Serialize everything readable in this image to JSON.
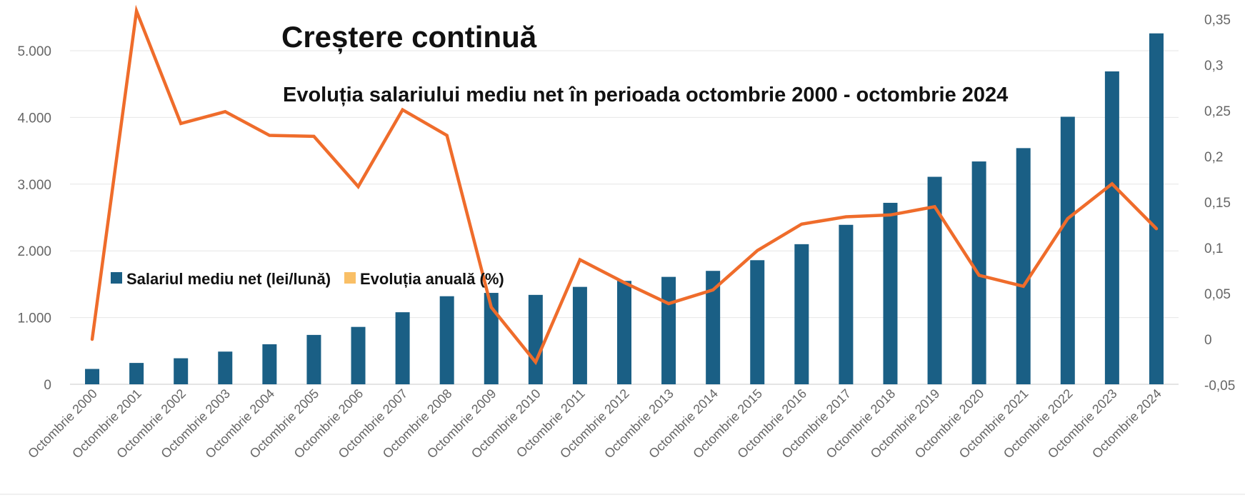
{
  "chart_data": {
    "type": "bar",
    "title": "Creștere continuă",
    "subtitle": "Evoluția salariului mediu net în perioada octombrie 2000 - octombrie 2024",
    "categories": [
      "Octombrie 2000",
      "Octombrie 2001",
      "Octombrie 2002",
      "Octombrie 2003",
      "Octombrie 2004",
      "Octombrie 2005",
      "Octombrie 2006",
      "Octombrie 2007",
      "Octombrie 2008",
      "Octombrie 2009",
      "Octombrie 2010",
      "Octombrie 2011",
      "Octombrie 2012",
      "Octombrie 2013",
      "Octombrie 2014",
      "Octombrie 2015",
      "Octombrie 2016",
      "Octombrie 2017",
      "Octombrie 2018",
      "Octombrie 2019",
      "Octombrie 2020",
      "Octombrie 2021",
      "Octombrie 2022",
      "Octombrie 2023",
      "Octombrie 2024"
    ],
    "series": [
      {
        "name": "Salariul mediu net (lei/lună)",
        "type": "bar",
        "axis": "left",
        "color": "#1a5f85",
        "values": [
          230,
          320,
          390,
          490,
          600,
          740,
          860,
          1080,
          1320,
          1370,
          1340,
          1460,
          1550,
          1610,
          1700,
          1860,
          2100,
          2390,
          2720,
          3110,
          3340,
          3540,
          4010,
          4690,
          5260
        ]
      },
      {
        "name": "Evoluția anuală (%)",
        "type": "line",
        "axis": "right",
        "color": "#ef6c2b",
        "legend_swatch_color": "#f9bf66",
        "values": [
          0,
          0.359,
          0.236,
          0.249,
          0.223,
          0.222,
          0.167,
          0.251,
          0.223,
          0.035,
          -0.025,
          0.087,
          0.062,
          0.039,
          0.054,
          0.097,
          0.126,
          0.134,
          0.136,
          0.145,
          0.07,
          0.058,
          0.132,
          0.17,
          0.121
        ]
      }
    ],
    "y_left": {
      "min": 0,
      "max": 5500,
      "ticks": [
        0,
        1000,
        2000,
        3000,
        4000,
        5000
      ],
      "tick_labels": [
        "0",
        "1.000",
        "2.000",
        "3.000",
        "4.000",
        "5.000"
      ]
    },
    "y_right": {
      "min": -0.05,
      "max": 0.35,
      "ticks": [
        -0.05,
        0,
        0.05,
        0.1,
        0.15,
        0.2,
        0.25,
        0.3,
        0.35
      ],
      "tick_labels": [
        "-0,05",
        "0",
        "0,05",
        "0,1",
        "0,15",
        "0,2",
        "0,25",
        "0,3",
        "0,35"
      ]
    },
    "grid": true,
    "legend_position": "left-middle"
  }
}
